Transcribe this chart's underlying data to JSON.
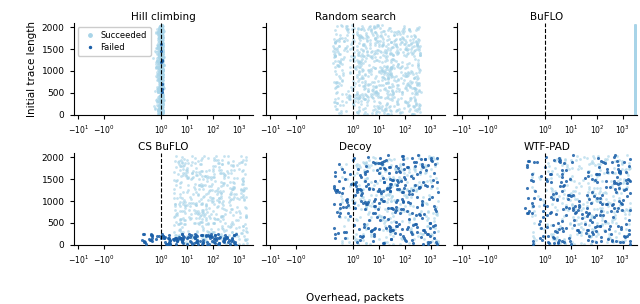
{
  "titles": [
    "Hill climbing",
    "Random search",
    "BuFLO",
    "CS BuFLO",
    "Decoy",
    "WTF-PAD"
  ],
  "ylabel": "Initial trace length",
  "xlabel": "Overhead, packets",
  "color_succeeded": "#a8d4e8",
  "color_failed": "#1a5fa8",
  "ylim": [
    0,
    2100
  ],
  "dashed_x": 1.0,
  "ms_s": 4,
  "ms_f": 5,
  "alpha_s": 0.65,
  "alpha_f": 0.85,
  "linthresh": 1,
  "xlim_lo": -15,
  "xlim_hi": 3500
}
